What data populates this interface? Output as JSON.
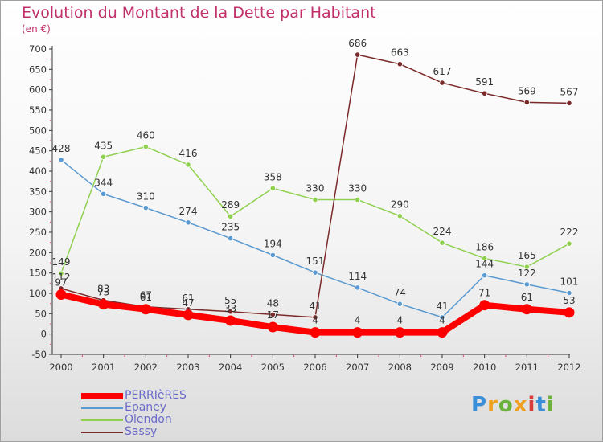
{
  "title": "Evolution du Montant de la Dette par Habitant",
  "unit_label": "(en €)",
  "logo_text": "Proxiti",
  "logo_colors": [
    "#3a8fd8",
    "#f0a020",
    "#6ab23a",
    "#f0a020",
    "#d83a3a",
    "#3a8fd8",
    "#6ab23a"
  ],
  "chart_data": {
    "type": "line",
    "x": [
      "2000",
      "2001",
      "2002",
      "2003",
      "2004",
      "2005",
      "2006",
      "2007",
      "2008",
      "2009",
      "2010",
      "2011",
      "2012"
    ],
    "ylim": [
      -50,
      700
    ],
    "yticks": [
      "700",
      "650",
      "600",
      "550",
      "500",
      "450",
      "400",
      "350",
      "300",
      "250",
      "200",
      "150",
      "100",
      "50",
      "0",
      "-50"
    ],
    "grid": false,
    "legend_position": "bottom-left",
    "series": [
      {
        "name": "PERRIèRES",
        "color": "#ff0000",
        "values": [
          97,
          73,
          61,
          47,
          33,
          17,
          4,
          4,
          4,
          4,
          71,
          61,
          53
        ]
      },
      {
        "name": "Epaney",
        "color": "#5a9ad0",
        "values": [
          428,
          344,
          310,
          274,
          235,
          194,
          151,
          114,
          74,
          41,
          144,
          122,
          101
        ]
      },
      {
        "name": "Olendon",
        "color": "#90d050",
        "values": [
          149,
          435,
          460,
          416,
          289,
          358,
          330,
          330,
          290,
          224,
          186,
          165,
          222
        ]
      },
      {
        "name": "Sassy",
        "color": "#7a2a2a",
        "values": [
          112,
          83,
          67,
          61,
          55,
          48,
          41,
          686,
          663,
          617,
          591,
          569,
          567
        ]
      }
    ]
  }
}
